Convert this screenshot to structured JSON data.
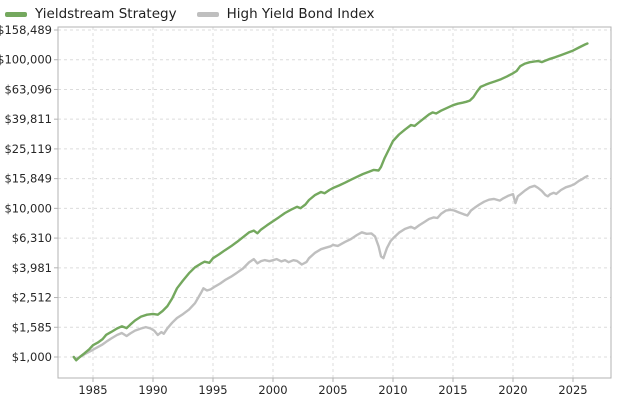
{
  "legend": {
    "items": [
      {
        "label": "Yieldstream Strategy",
        "color": "#74a85e"
      },
      {
        "label": "High Yield Bond Index",
        "color": "#bfbfbf"
      }
    ]
  },
  "colors": {
    "grid": "#dcdcdc",
    "frame": "#b3b3b3",
    "tick_text": "#262626",
    "background": "#ffffff"
  },
  "chart_data": {
    "type": "line",
    "title": "",
    "xlabel": "",
    "ylabel": "",
    "y_scale": "log",
    "grid": "dashed",
    "legend_position": "top-left",
    "x_range": [
      1982.1,
      2028.2
    ],
    "y_range": [
      722,
      166000
    ],
    "x_ticks": [
      1985,
      1990,
      1995,
      2000,
      2005,
      2010,
      2015,
      2020,
      2025
    ],
    "y_ticks": [
      {
        "label": "$1,000",
        "value": 1000
      },
      {
        "label": "$1,585",
        "value": 1585
      },
      {
        "label": "$2,512",
        "value": 2512
      },
      {
        "label": "$3,981",
        "value": 3981
      },
      {
        "label": "$6,310",
        "value": 6310
      },
      {
        "label": "$10,000",
        "value": 10000
      },
      {
        "label": "$15,849",
        "value": 15849
      },
      {
        "label": "$25,119",
        "value": 25119
      },
      {
        "label": "$39,811",
        "value": 39811
      },
      {
        "label": "$63,096",
        "value": 63096
      },
      {
        "label": "$100,000",
        "value": 100000
      },
      {
        "label": "$158,489",
        "value": 158489
      }
    ],
    "series": [
      {
        "name": "High Yield Bond Index",
        "color": "#bfbfbf",
        "points": [
          [
            1983.4,
            1000
          ],
          [
            1983.6,
            965
          ],
          [
            1983.9,
            1000
          ],
          [
            1984.3,
            1045
          ],
          [
            1984.7,
            1085
          ],
          [
            1985.0,
            1120
          ],
          [
            1985.4,
            1165
          ],
          [
            1985.8,
            1215
          ],
          [
            1986.1,
            1265
          ],
          [
            1986.5,
            1330
          ],
          [
            1987.0,
            1405
          ],
          [
            1987.4,
            1450
          ],
          [
            1987.8,
            1385
          ],
          [
            1988.1,
            1440
          ],
          [
            1988.5,
            1505
          ],
          [
            1989.0,
            1555
          ],
          [
            1989.4,
            1590
          ],
          [
            1989.8,
            1555
          ],
          [
            1990.1,
            1505
          ],
          [
            1990.4,
            1405
          ],
          [
            1990.7,
            1470
          ],
          [
            1990.9,
            1435
          ],
          [
            1991.2,
            1560
          ],
          [
            1991.6,
            1700
          ],
          [
            1992.0,
            1830
          ],
          [
            1992.5,
            1945
          ],
          [
            1993.0,
            2085
          ],
          [
            1993.5,
            2300
          ],
          [
            1994.0,
            2700
          ],
          [
            1994.2,
            2900
          ],
          [
            1994.5,
            2800
          ],
          [
            1994.8,
            2850
          ],
          [
            1995.2,
            2990
          ],
          [
            1995.6,
            3120
          ],
          [
            1996.0,
            3290
          ],
          [
            1996.5,
            3470
          ],
          [
            1997.0,
            3690
          ],
          [
            1997.5,
            3940
          ],
          [
            1998.0,
            4330
          ],
          [
            1998.4,
            4560
          ],
          [
            1998.7,
            4260
          ],
          [
            1999.0,
            4420
          ],
          [
            1999.3,
            4490
          ],
          [
            1999.7,
            4410
          ],
          [
            2000.0,
            4480
          ],
          [
            2000.3,
            4560
          ],
          [
            2000.7,
            4400
          ],
          [
            2001.0,
            4490
          ],
          [
            2001.3,
            4340
          ],
          [
            2001.7,
            4480
          ],
          [
            2002.0,
            4430
          ],
          [
            2002.4,
            4190
          ],
          [
            2002.8,
            4360
          ],
          [
            2003.0,
            4620
          ],
          [
            2003.5,
            5020
          ],
          [
            2004.0,
            5310
          ],
          [
            2004.4,
            5440
          ],
          [
            2004.8,
            5560
          ],
          [
            2005.0,
            5680
          ],
          [
            2005.4,
            5590
          ],
          [
            2006.0,
            5950
          ],
          [
            2006.5,
            6220
          ],
          [
            2007.0,
            6620
          ],
          [
            2007.4,
            6900
          ],
          [
            2007.8,
            6740
          ],
          [
            2008.2,
            6790
          ],
          [
            2008.5,
            6480
          ],
          [
            2008.8,
            5560
          ],
          [
            2009.0,
            4750
          ],
          [
            2009.2,
            4620
          ],
          [
            2009.5,
            5420
          ],
          [
            2009.8,
            6020
          ],
          [
            2010.1,
            6400
          ],
          [
            2010.5,
            6860
          ],
          [
            2011.0,
            7280
          ],
          [
            2011.5,
            7520
          ],
          [
            2011.8,
            7310
          ],
          [
            2012.2,
            7720
          ],
          [
            2012.6,
            8080
          ],
          [
            2013.0,
            8480
          ],
          [
            2013.4,
            8690
          ],
          [
            2013.7,
            8610
          ],
          [
            2014.0,
            9180
          ],
          [
            2014.4,
            9660
          ],
          [
            2014.8,
            9780
          ],
          [
            2015.1,
            9680
          ],
          [
            2015.5,
            9380
          ],
          [
            2015.9,
            9120
          ],
          [
            2016.2,
            8950
          ],
          [
            2016.5,
            9680
          ],
          [
            2016.8,
            10080
          ],
          [
            2017.2,
            10610
          ],
          [
            2017.6,
            11080
          ],
          [
            2018.0,
            11440
          ],
          [
            2018.4,
            11580
          ],
          [
            2018.9,
            11270
          ],
          [
            2019.2,
            11690
          ],
          [
            2019.6,
            12140
          ],
          [
            2020.0,
            12480
          ],
          [
            2020.2,
            10850
          ],
          [
            2020.4,
            12050
          ],
          [
            2020.7,
            12600
          ],
          [
            2021.0,
            13180
          ],
          [
            2021.4,
            13850
          ],
          [
            2021.8,
            14180
          ],
          [
            2022.1,
            13700
          ],
          [
            2022.4,
            13100
          ],
          [
            2022.7,
            12300
          ],
          [
            2022.9,
            12050
          ],
          [
            2023.1,
            12450
          ],
          [
            2023.4,
            12720
          ],
          [
            2023.6,
            12520
          ],
          [
            2024.0,
            13280
          ],
          [
            2024.4,
            13850
          ],
          [
            2024.8,
            14180
          ],
          [
            2025.1,
            14520
          ],
          [
            2025.5,
            15320
          ],
          [
            2025.8,
            15780
          ],
          [
            2026.0,
            16180
          ],
          [
            2026.2,
            16480
          ]
        ]
      },
      {
        "name": "Yieldstream Strategy",
        "color": "#74a85e",
        "points": [
          [
            1983.4,
            1000
          ],
          [
            1983.6,
            950
          ],
          [
            1983.9,
            1000
          ],
          [
            1984.3,
            1060
          ],
          [
            1984.7,
            1130
          ],
          [
            1985.0,
            1200
          ],
          [
            1985.4,
            1250
          ],
          [
            1985.8,
            1320
          ],
          [
            1986.1,
            1410
          ],
          [
            1986.5,
            1470
          ],
          [
            1987.0,
            1555
          ],
          [
            1987.4,
            1610
          ],
          [
            1987.8,
            1565
          ],
          [
            1988.1,
            1650
          ],
          [
            1988.5,
            1760
          ],
          [
            1989.0,
            1870
          ],
          [
            1989.5,
            1925
          ],
          [
            1990.0,
            1950
          ],
          [
            1990.4,
            1925
          ],
          [
            1990.8,
            2040
          ],
          [
            1991.2,
            2200
          ],
          [
            1991.6,
            2480
          ],
          [
            1992.0,
            2900
          ],
          [
            1992.5,
            3270
          ],
          [
            1993.0,
            3660
          ],
          [
            1993.5,
            4010
          ],
          [
            1994.0,
            4250
          ],
          [
            1994.3,
            4380
          ],
          [
            1994.7,
            4300
          ],
          [
            1995.0,
            4620
          ],
          [
            1995.5,
            4900
          ],
          [
            1996.0,
            5230
          ],
          [
            1996.5,
            5560
          ],
          [
            1997.0,
            5950
          ],
          [
            1997.5,
            6400
          ],
          [
            1998.0,
            6890
          ],
          [
            1998.4,
            7090
          ],
          [
            1998.7,
            6800
          ],
          [
            1999.0,
            7200
          ],
          [
            1999.5,
            7690
          ],
          [
            2000.0,
            8200
          ],
          [
            2000.5,
            8720
          ],
          [
            2001.0,
            9300
          ],
          [
            2001.5,
            9800
          ],
          [
            2002.0,
            10240
          ],
          [
            2002.3,
            10020
          ],
          [
            2002.7,
            10620
          ],
          [
            2003.0,
            11380
          ],
          [
            2003.5,
            12280
          ],
          [
            2004.0,
            12890
          ],
          [
            2004.3,
            12620
          ],
          [
            2004.7,
            13280
          ],
          [
            2005.0,
            13700
          ],
          [
            2005.5,
            14240
          ],
          [
            2006.0,
            14890
          ],
          [
            2006.5,
            15590
          ],
          [
            2007.0,
            16310
          ],
          [
            2007.5,
            17020
          ],
          [
            2008.0,
            17620
          ],
          [
            2008.4,
            18150
          ],
          [
            2008.8,
            17980
          ],
          [
            2009.0,
            19000
          ],
          [
            2009.3,
            21800
          ],
          [
            2009.7,
            25300
          ],
          [
            2010.0,
            28400
          ],
          [
            2010.5,
            31400
          ],
          [
            2011.0,
            33900
          ],
          [
            2011.5,
            36400
          ],
          [
            2011.8,
            35900
          ],
          [
            2012.2,
            38100
          ],
          [
            2012.6,
            40400
          ],
          [
            2013.0,
            42900
          ],
          [
            2013.3,
            44200
          ],
          [
            2013.6,
            43500
          ],
          [
            2014.0,
            45400
          ],
          [
            2014.5,
            47400
          ],
          [
            2015.0,
            49400
          ],
          [
            2015.4,
            50600
          ],
          [
            2015.8,
            51400
          ],
          [
            2016.1,
            52100
          ],
          [
            2016.4,
            53100
          ],
          [
            2016.7,
            56000
          ],
          [
            2017.0,
            61000
          ],
          [
            2017.3,
            65600
          ],
          [
            2017.7,
            67800
          ],
          [
            2018.0,
            69300
          ],
          [
            2018.5,
            71500
          ],
          [
            2019.0,
            74000
          ],
          [
            2019.5,
            77200
          ],
          [
            2020.0,
            81000
          ],
          [
            2020.3,
            84000
          ],
          [
            2020.6,
            90500
          ],
          [
            2021.0,
            94200
          ],
          [
            2021.4,
            96200
          ],
          [
            2021.8,
            97300
          ],
          [
            2022.1,
            98100
          ],
          [
            2022.4,
            96400
          ],
          [
            2022.7,
            98600
          ],
          [
            2023.0,
            100800
          ],
          [
            2023.5,
            103900
          ],
          [
            2024.0,
            107400
          ],
          [
            2024.5,
            111100
          ],
          [
            2025.0,
            115200
          ],
          [
            2025.5,
            120800
          ],
          [
            2026.0,
            126500
          ],
          [
            2026.2,
            128500
          ]
        ]
      }
    ]
  }
}
